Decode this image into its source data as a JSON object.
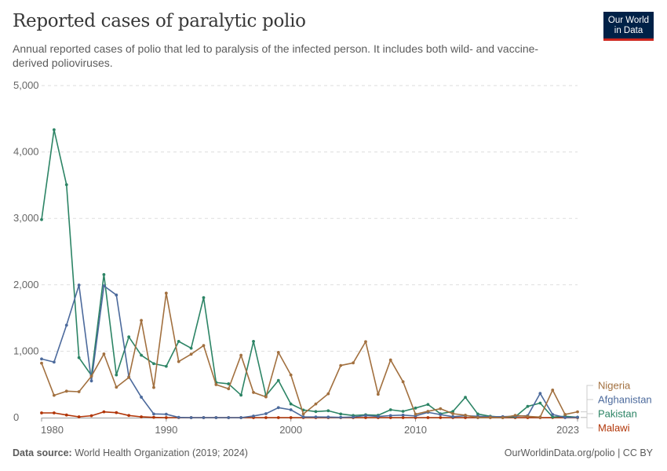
{
  "header": {
    "title": "Reported cases of paralytic polio",
    "subtitle": "Annual reported cases of polio that led to paralysis of the infected person. It includes both wild- and vaccine-derived polioviruses.",
    "logo_text": "Our World in Data"
  },
  "footer": {
    "source_label": "Data source:",
    "source_text": "World Health Organization (2019; 2024)",
    "link_text": "OurWorldinData.org/polio | CC BY"
  },
  "chart_data": {
    "type": "line",
    "title": "Reported cases of paralytic polio",
    "x": [
      1980,
      1981,
      1982,
      1983,
      1984,
      1985,
      1986,
      1987,
      1988,
      1989,
      1990,
      1991,
      1992,
      1993,
      1994,
      1995,
      1996,
      1997,
      1998,
      1999,
      2000,
      2001,
      2002,
      2003,
      2004,
      2005,
      2006,
      2007,
      2008,
      2009,
      2010,
      2011,
      2012,
      2013,
      2014,
      2015,
      2016,
      2017,
      2018,
      2019,
      2020,
      2021,
      2022,
      2023
    ],
    "xlim": [
      1980,
      2023
    ],
    "ylim": [
      0,
      5000
    ],
    "x_ticks": [
      "1980",
      "1990",
      "2000",
      "2010",
      "2023"
    ],
    "y_ticks": [
      "0",
      "1,000",
      "2,000",
      "3,000",
      "4,000",
      "5,000"
    ],
    "grid": "horizontal dashed",
    "legend": "right, labels at line ends",
    "series": [
      {
        "name": "Nigeria",
        "color": "#a2703f",
        "values": [
          820,
          335,
          398,
          390,
          623,
          959,
          458,
          604,
          1464,
          454,
          1874,
          844,
          955,
          1085,
          497,
          434,
          939,
          379,
          312,
          982,
          643,
          55,
          205,
          359,
          785,
          824,
          1144,
          351,
          868,
          540,
          51,
          95,
          134,
          59,
          36,
          1,
          4,
          0,
          34,
          18,
          8,
          415,
          48,
          87
        ]
      },
      {
        "name": "Afghanistan",
        "color": "#4c6a9c",
        "values": [
          884,
          836,
          1392,
          1996,
          552,
          1984,
          1846,
          615,
          308,
          55,
          51,
          4,
          0,
          0,
          0,
          0,
          0,
          24,
          59,
          150,
          118,
          11,
          10,
          8,
          4,
          9,
          31,
          17,
          31,
          38,
          25,
          80,
          46,
          14,
          28,
          20,
          13,
          14,
          21,
          29,
          364,
          47,
          2,
          6
        ]
      },
      {
        "name": "Pakistan",
        "color": "#2c8465",
        "values": [
          2982,
          4335,
          3507,
          903,
          635,
          2154,
          643,
          1215,
          939,
          813,
          773,
          1148,
          1045,
          1807,
          529,
          509,
          339,
          1148,
          331,
          560,
          205,
          114,
          91,
          103,
          55,
          32,
          43,
          35,
          118,
          95,
          144,
          198,
          58,
          93,
          306,
          54,
          20,
          8,
          12,
          169,
          219,
          9,
          20,
          6
        ]
      },
      {
        "name": "Malawi",
        "color": "#b13507",
        "values": [
          71,
          71,
          39,
          12,
          28,
          87,
          75,
          32,
          12,
          4,
          0,
          0,
          0,
          0,
          0,
          0,
          0,
          0,
          0,
          0,
          0,
          0,
          0,
          0,
          0,
          0,
          0,
          0,
          0,
          0,
          0,
          0,
          0,
          0,
          0,
          0,
          0,
          0,
          0,
          0,
          0,
          1,
          1,
          0
        ]
      }
    ]
  }
}
